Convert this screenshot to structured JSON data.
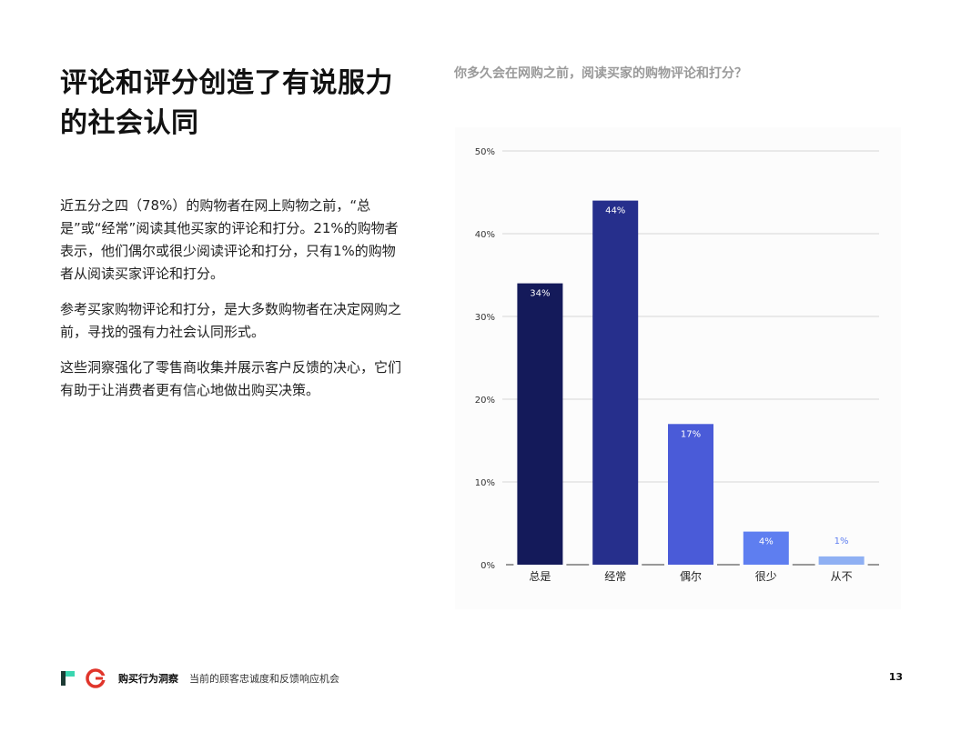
{
  "headline": "评论和评分创造了有说服力的社会认同",
  "paragraphs": [
    "近五分之四（78%）的购物者在网上购物之前，“总是”或“经常”阅读其他买家的评论和打分。21%的购物者表示，他们偶尔或很少阅读评论和打分，只有1%的购物者从阅读买家评论和打分。",
    "参考买家购物评论和打分，是大多数购物者在决定网购之前，寻找的强有力社会认同形式。",
    "这些洞察强化了零售商收集并展示客户反馈的决心，它们有助于让消费者更有信心地做出购买决策。"
  ],
  "chart_question": "你多久会在网购之前，阅读买家的购物评论和打分？",
  "chart_data": {
    "type": "bar",
    "categories": [
      "总是",
      "经常",
      "偶尔",
      "很少",
      "从不"
    ],
    "values": [
      34,
      44,
      17,
      4,
      1
    ],
    "value_labels": [
      "34%",
      "44%",
      "17%",
      "4%",
      "1%"
    ],
    "colors": [
      "#141a5a",
      "#262f8c",
      "#4a5bd8",
      "#5e7ef0",
      "#8fb0f3"
    ],
    "ylim": [
      0,
      50
    ],
    "yticks": [
      0,
      10,
      20,
      30,
      40,
      50
    ],
    "ytick_labels": [
      "0%",
      "10%",
      "20%",
      "30%",
      "40%",
      "50%"
    ],
    "grid": true,
    "title": "",
    "xlabel": "",
    "ylabel": ""
  },
  "footer": {
    "brand": "购买行为洞察",
    "subtitle": "当前的顾客忠诚度和反馈响应机会",
    "page_number": "13"
  }
}
